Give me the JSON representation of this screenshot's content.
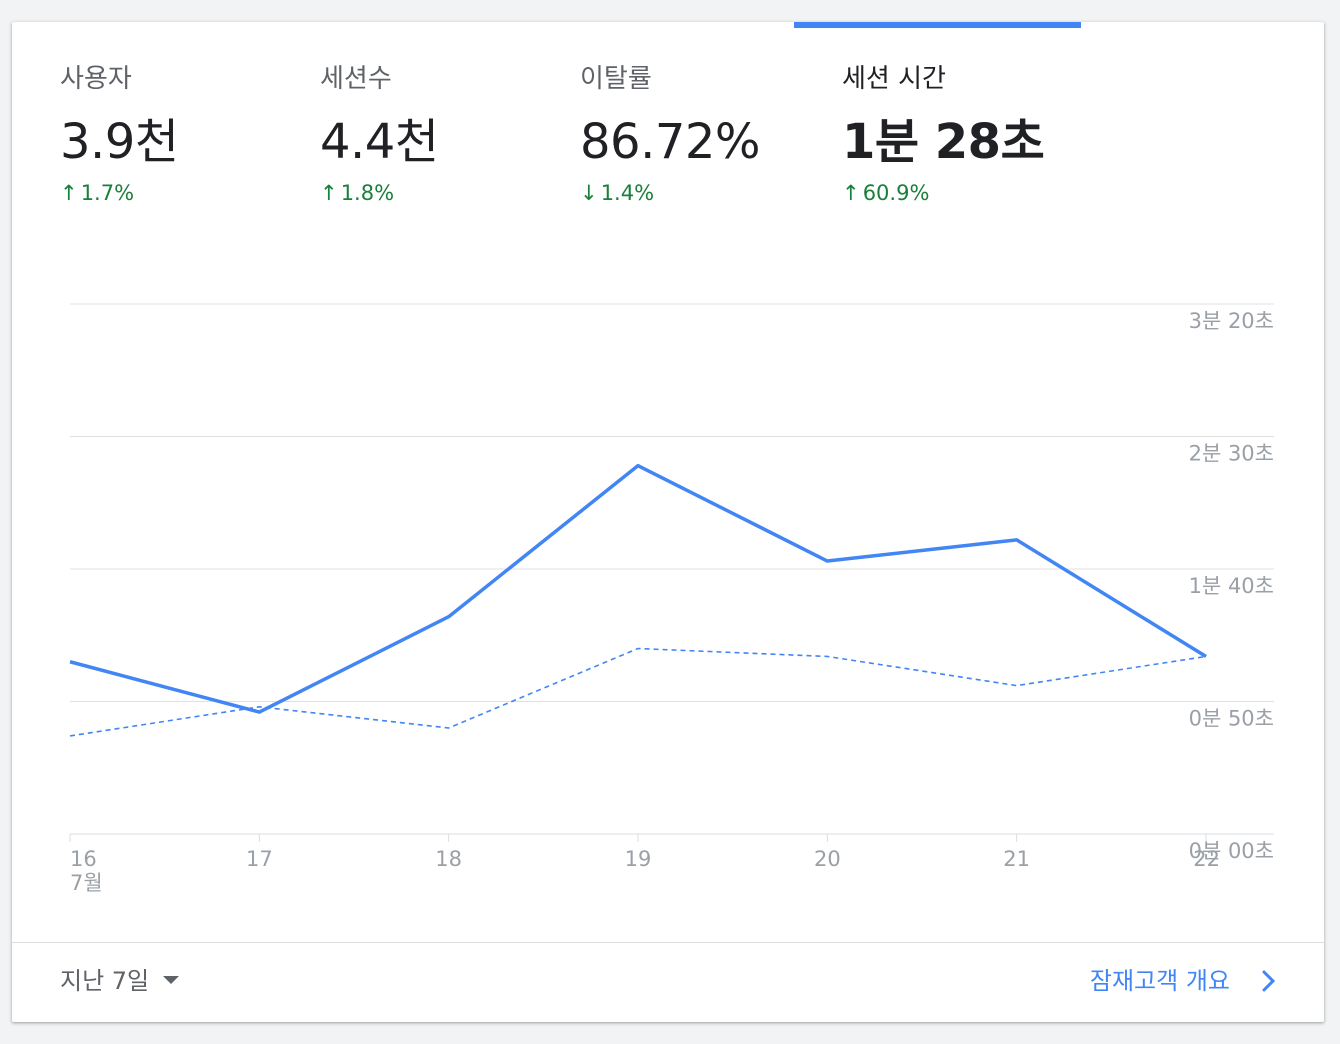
{
  "metrics": [
    {
      "label": "사용자",
      "value": "3.9천",
      "change": "1.7%",
      "direction": "up"
    },
    {
      "label": "세션수",
      "value": "4.4천",
      "change": "1.8%",
      "direction": "up"
    },
    {
      "label": "이탈률",
      "value": "86.72%",
      "change": "1.4%",
      "direction": "down"
    },
    {
      "label": "세션 시간",
      "value": "1분 28초",
      "change": "60.9%",
      "direction": "up"
    }
  ],
  "active_metric": "세션 시간",
  "footer": {
    "range_label": "지난 7일",
    "link_label": "잠재고객 개요"
  },
  "colors": {
    "accent": "#4285f4",
    "positive": "#188038",
    "grid": "#e0e0e0",
    "tick": "#9aa0a6"
  },
  "chart_data": {
    "type": "line",
    "x": [
      "16",
      "17",
      "18",
      "19",
      "20",
      "21",
      "22"
    ],
    "x_sublabel": "7월",
    "y_unit": "seconds",
    "y_ticks": [
      {
        "value": 0,
        "label": "0분 00초"
      },
      {
        "value": 50,
        "label": "0분 50초"
      },
      {
        "value": 100,
        "label": "1분 40초"
      },
      {
        "value": 150,
        "label": "2분 30초"
      },
      {
        "value": 200,
        "label": "3분 20초"
      }
    ],
    "ylim": [
      0,
      200
    ],
    "grid": true,
    "series": [
      {
        "style": "solid",
        "values": [
          65,
          46,
          82,
          139,
          103,
          111,
          67
        ]
      },
      {
        "style": "dashed",
        "values": [
          37,
          48,
          40,
          70,
          67,
          56,
          67
        ]
      }
    ]
  }
}
